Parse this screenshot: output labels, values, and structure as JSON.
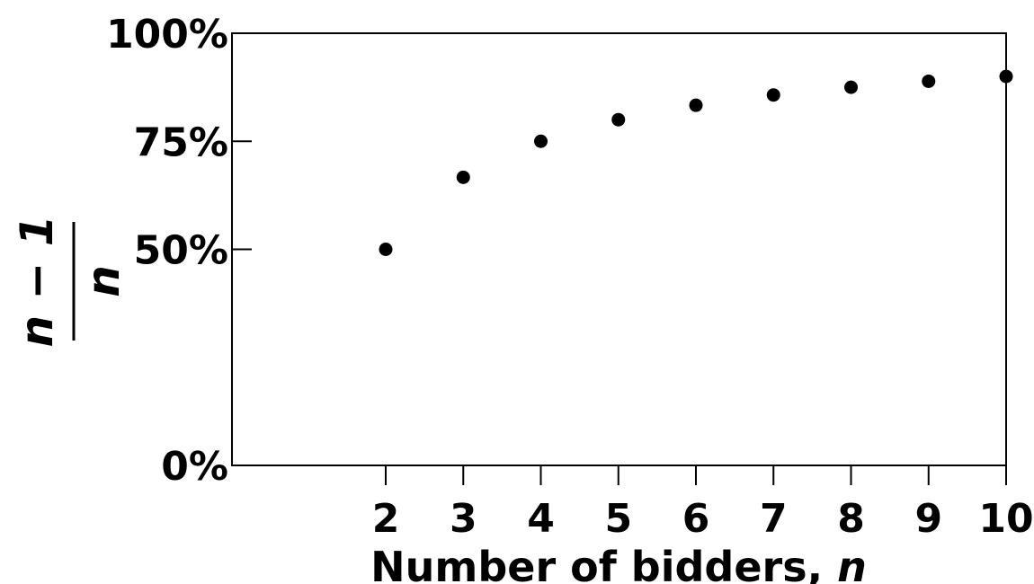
{
  "chart_data": {
    "type": "scatter",
    "x": [
      2,
      3,
      4,
      5,
      6,
      7,
      8,
      9,
      10
    ],
    "y": [
      0.5,
      0.6667,
      0.75,
      0.8,
      0.8333,
      0.8571,
      0.875,
      0.8889,
      0.9
    ],
    "xlim": [
      0,
      10
    ],
    "ylim": [
      0,
      1
    ],
    "x_ticks": [
      2,
      3,
      4,
      5,
      6,
      7,
      8,
      9,
      10
    ],
    "x_tick_labels": [
      "2",
      "3",
      "4",
      "5",
      "6",
      "7",
      "8",
      "9",
      "10"
    ],
    "y_ticks": [
      0,
      0.5,
      0.75,
      1
    ],
    "y_tick_labels": [
      "0%",
      "50%",
      "75%",
      "100%"
    ],
    "xlabel": {
      "text": "Number of bidders, ",
      "variable": "n"
    },
    "ylabel": {
      "numerator": "n − 1",
      "denominator": "n"
    },
    "grid": false,
    "legend": "none",
    "marker_color": "#000000"
  }
}
